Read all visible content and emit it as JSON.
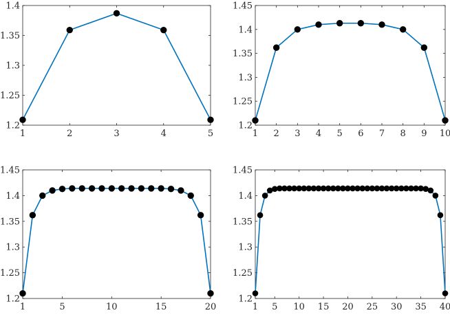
{
  "figure": {
    "line_color": "#0072BD",
    "marker_color": "#000000",
    "axis_color": "#262626",
    "background": "#ffffff"
  },
  "chart_data": [
    {
      "type": "line",
      "title": "",
      "xlabel": "",
      "ylabel": "",
      "grid": false,
      "xlim": [
        1,
        5
      ],
      "ylim": [
        1.2,
        1.4
      ],
      "xticks": [
        1,
        2,
        3,
        4,
        5
      ],
      "yticks": [
        1.2,
        1.25,
        1.3,
        1.35,
        1.4
      ],
      "x": [
        1,
        2,
        3,
        4,
        5
      ],
      "values": [
        1.209,
        1.359,
        1.387,
        1.359,
        1.209
      ]
    },
    {
      "type": "line",
      "title": "",
      "xlabel": "",
      "ylabel": "",
      "grid": false,
      "xlim": [
        1,
        10
      ],
      "ylim": [
        1.2,
        1.45
      ],
      "xticks": [
        1,
        2,
        3,
        4,
        5,
        6,
        7,
        8,
        9,
        10
      ],
      "yticks": [
        1.2,
        1.25,
        1.3,
        1.35,
        1.4,
        1.45
      ],
      "x": [
        1,
        2,
        3,
        4,
        5,
        6,
        7,
        8,
        9,
        10
      ],
      "values": [
        1.21,
        1.362,
        1.4,
        1.41,
        1.413,
        1.413,
        1.41,
        1.4,
        1.362,
        1.21
      ]
    },
    {
      "type": "line",
      "title": "",
      "xlabel": "",
      "ylabel": "",
      "grid": false,
      "xlim": [
        1,
        20
      ],
      "ylim": [
        1.2,
        1.45
      ],
      "xticks": [
        1,
        5,
        10,
        15,
        20
      ],
      "yticks": [
        1.2,
        1.25,
        1.3,
        1.35,
        1.4,
        1.45
      ],
      "x": [
        1,
        2,
        3,
        4,
        5,
        6,
        7,
        8,
        9,
        10,
        11,
        12,
        13,
        14,
        15,
        16,
        17,
        18,
        19,
        20
      ],
      "values": [
        1.21,
        1.362,
        1.4,
        1.41,
        1.413,
        1.414,
        1.414,
        1.414,
        1.414,
        1.414,
        1.414,
        1.414,
        1.414,
        1.414,
        1.414,
        1.413,
        1.41,
        1.4,
        1.362,
        1.21
      ]
    },
    {
      "type": "line",
      "title": "",
      "xlabel": "",
      "ylabel": "",
      "grid": false,
      "xlim": [
        1,
        40
      ],
      "ylim": [
        1.2,
        1.45
      ],
      "xticks": [
        1,
        5,
        10,
        15,
        20,
        25,
        30,
        35,
        40
      ],
      "yticks": [
        1.2,
        1.25,
        1.3,
        1.35,
        1.4,
        1.45
      ],
      "x": [
        1,
        2,
        3,
        4,
        5,
        6,
        7,
        8,
        9,
        10,
        11,
        12,
        13,
        14,
        15,
        16,
        17,
        18,
        19,
        20,
        21,
        22,
        23,
        24,
        25,
        26,
        27,
        28,
        29,
        30,
        31,
        32,
        33,
        34,
        35,
        36,
        37,
        38,
        39,
        40
      ],
      "values": [
        1.21,
        1.362,
        1.4,
        1.41,
        1.413,
        1.414,
        1.414,
        1.414,
        1.414,
        1.414,
        1.414,
        1.414,
        1.414,
        1.414,
        1.414,
        1.414,
        1.414,
        1.414,
        1.414,
        1.414,
        1.414,
        1.414,
        1.414,
        1.414,
        1.414,
        1.414,
        1.414,
        1.414,
        1.414,
        1.414,
        1.414,
        1.414,
        1.414,
        1.414,
        1.414,
        1.413,
        1.41,
        1.4,
        1.362,
        1.21
      ]
    }
  ]
}
